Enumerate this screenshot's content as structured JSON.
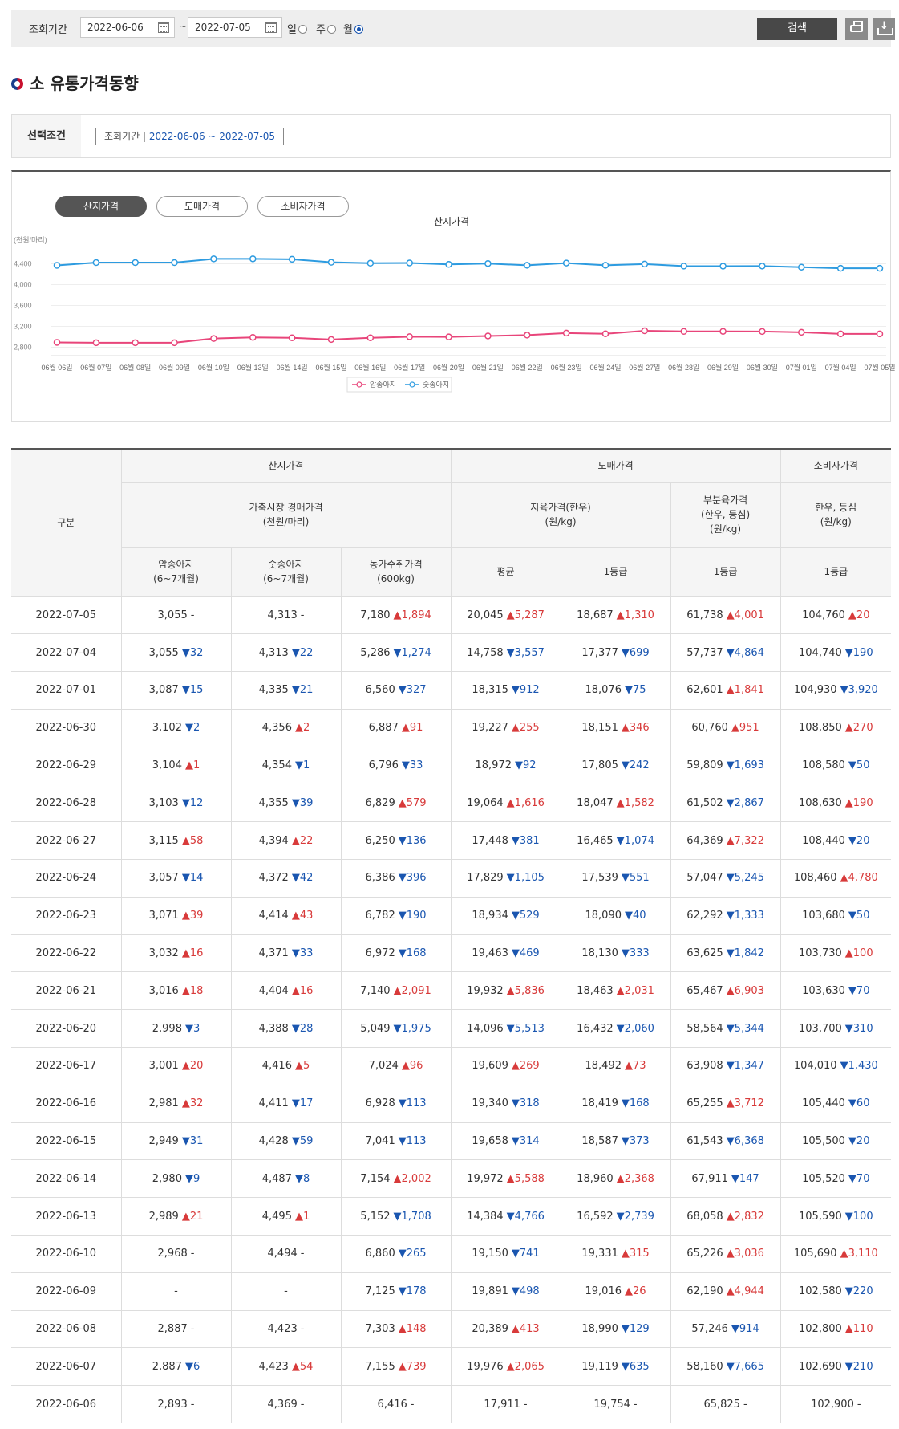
{
  "search": {
    "label": "조회기간",
    "start_date": "2022-06-06",
    "end_date": "2022-07-05",
    "tilde": "~",
    "periods": [
      "일",
      "주",
      "월"
    ],
    "selected_period": "월",
    "search_button": "검색",
    "print_icon": "print-icon",
    "download_icon": "download-icon"
  },
  "page": {
    "title": "소 유통가격동향"
  },
  "condition": {
    "label": "선택조건",
    "tag_label": "조회기간 |",
    "tag_value": "2022-06-06 ~ 2022-07-05"
  },
  "chart_tabs": [
    "산지가격",
    "도매가격",
    "소비자가격"
  ],
  "active_tab": "산지가격",
  "colors": {
    "series1": "#e8457a",
    "series2": "#2d9be0",
    "up": "#d83a3a",
    "down": "#1a56b0"
  },
  "chart_data": {
    "type": "line",
    "title": "산지가격",
    "ylabel": "(천원/마리)",
    "ylim": [
      2700,
      4700
    ],
    "yticks": [
      "4,400",
      "4,000",
      "3,600",
      "3,200",
      "2,800"
    ],
    "ytick_values": [
      4400,
      4000,
      3600,
      3200,
      2800
    ],
    "grid": true,
    "legend": "bottom",
    "x": [
      "06월 06일",
      "06월 07일",
      "06월 08일",
      "06월 09일",
      "06월 10일",
      "06월 13일",
      "06월 14일",
      "06월 15일",
      "06월 16일",
      "06월 17일",
      "06월 20일",
      "06월 21일",
      "06월 22일",
      "06월 23일",
      "06월 24일",
      "06월 27일",
      "06월 28일",
      "06월 29일",
      "06월 30일",
      "07월 01일",
      "07월 04일",
      "07월 05일"
    ],
    "series": [
      {
        "name": "암송아지",
        "values": [
          2893,
          2887,
          2887,
          2887,
          2968,
          2989,
          2980,
          2949,
          2981,
          3001,
          2998,
          3016,
          3032,
          3071,
          3057,
          3115,
          3103,
          3104,
          3102,
          3087,
          3055,
          3055
        ]
      },
      {
        "name": "숫송아지",
        "values": [
          4369,
          4423,
          4423,
          4423,
          4494,
          4495,
          4487,
          4428,
          4411,
          4416,
          4388,
          4404,
          4371,
          4414,
          4372,
          4394,
          4355,
          4354,
          4356,
          4335,
          4313,
          4313
        ]
      }
    ]
  },
  "table": {
    "h_category": "구분",
    "h_group1": "산지가격",
    "h_group2": "도매가격",
    "h_group3": "소비자가격",
    "h_sub1": "가축시장 경매가격\n(천원/마리)",
    "h_sub2": "지육가격(한우)\n(원/kg)",
    "h_sub3": "부분육가격\n(한우, 등심)\n(원/kg)",
    "h_sub4": "한우, 등심\n(원/kg)",
    "h_cols": [
      "암송아지\n(6~7개월)",
      "숫송아지\n(6~7개월)",
      "농가수취가격\n(600kg)",
      "평균",
      "1등급",
      "1등급",
      "1등급"
    ],
    "rows": [
      [
        "2022-07-05",
        [
          "3,055",
          "-"
        ],
        [
          "4,313",
          "-"
        ],
        [
          "7,180",
          "▲1,894"
        ],
        [
          "20,045",
          "▲5,287"
        ],
        [
          "18,687",
          "▲1,310"
        ],
        [
          "61,738",
          "▲4,001"
        ],
        [
          "104,760",
          "▲20"
        ]
      ],
      [
        "2022-07-04",
        [
          "3,055",
          "▼32"
        ],
        [
          "4,313",
          "▼22"
        ],
        [
          "5,286",
          "▼1,274"
        ],
        [
          "14,758",
          "▼3,557"
        ],
        [
          "17,377",
          "▼699"
        ],
        [
          "57,737",
          "▼4,864"
        ],
        [
          "104,740",
          "▼190"
        ]
      ],
      [
        "2022-07-01",
        [
          "3,087",
          "▼15"
        ],
        [
          "4,335",
          "▼21"
        ],
        [
          "6,560",
          "▼327"
        ],
        [
          "18,315",
          "▼912"
        ],
        [
          "18,076",
          "▼75"
        ],
        [
          "62,601",
          "▲1,841"
        ],
        [
          "104,930",
          "▼3,920"
        ]
      ],
      [
        "2022-06-30",
        [
          "3,102",
          "▼2"
        ],
        [
          "4,356",
          "▲2"
        ],
        [
          "6,887",
          "▲91"
        ],
        [
          "19,227",
          "▲255"
        ],
        [
          "18,151",
          "▲346"
        ],
        [
          "60,760",
          "▲951"
        ],
        [
          "108,850",
          "▲270"
        ]
      ],
      [
        "2022-06-29",
        [
          "3,104",
          "▲1"
        ],
        [
          "4,354",
          "▼1"
        ],
        [
          "6,796",
          "▼33"
        ],
        [
          "18,972",
          "▼92"
        ],
        [
          "17,805",
          "▼242"
        ],
        [
          "59,809",
          "▼1,693"
        ],
        [
          "108,580",
          "▼50"
        ]
      ],
      [
        "2022-06-28",
        [
          "3,103",
          "▼12"
        ],
        [
          "4,355",
          "▼39"
        ],
        [
          "6,829",
          "▲579"
        ],
        [
          "19,064",
          "▲1,616"
        ],
        [
          "18,047",
          "▲1,582"
        ],
        [
          "61,502",
          "▼2,867"
        ],
        [
          "108,630",
          "▲190"
        ]
      ],
      [
        "2022-06-27",
        [
          "3,115",
          "▲58"
        ],
        [
          "4,394",
          "▲22"
        ],
        [
          "6,250",
          "▼136"
        ],
        [
          "17,448",
          "▼381"
        ],
        [
          "16,465",
          "▼1,074"
        ],
        [
          "64,369",
          "▲7,322"
        ],
        [
          "108,440",
          "▼20"
        ]
      ],
      [
        "2022-06-24",
        [
          "3,057",
          "▼14"
        ],
        [
          "4,372",
          "▼42"
        ],
        [
          "6,386",
          "▼396"
        ],
        [
          "17,829",
          "▼1,105"
        ],
        [
          "17,539",
          "▼551"
        ],
        [
          "57,047",
          "▼5,245"
        ],
        [
          "108,460",
          "▲4,780"
        ]
      ],
      [
        "2022-06-23",
        [
          "3,071",
          "▲39"
        ],
        [
          "4,414",
          "▲43"
        ],
        [
          "6,782",
          "▼190"
        ],
        [
          "18,934",
          "▼529"
        ],
        [
          "18,090",
          "▼40"
        ],
        [
          "62,292",
          "▼1,333"
        ],
        [
          "103,680",
          "▼50"
        ]
      ],
      [
        "2022-06-22",
        [
          "3,032",
          "▲16"
        ],
        [
          "4,371",
          "▼33"
        ],
        [
          "6,972",
          "▼168"
        ],
        [
          "19,463",
          "▼469"
        ],
        [
          "18,130",
          "▼333"
        ],
        [
          "63,625",
          "▼1,842"
        ],
        [
          "103,730",
          "▲100"
        ]
      ],
      [
        "2022-06-21",
        [
          "3,016",
          "▲18"
        ],
        [
          "4,404",
          "▲16"
        ],
        [
          "7,140",
          "▲2,091"
        ],
        [
          "19,932",
          "▲5,836"
        ],
        [
          "18,463",
          "▲2,031"
        ],
        [
          "65,467",
          "▲6,903"
        ],
        [
          "103,630",
          "▼70"
        ]
      ],
      [
        "2022-06-20",
        [
          "2,998",
          "▼3"
        ],
        [
          "4,388",
          "▼28"
        ],
        [
          "5,049",
          "▼1,975"
        ],
        [
          "14,096",
          "▼5,513"
        ],
        [
          "16,432",
          "▼2,060"
        ],
        [
          "58,564",
          "▼5,344"
        ],
        [
          "103,700",
          "▼310"
        ]
      ],
      [
        "2022-06-17",
        [
          "3,001",
          "▲20"
        ],
        [
          "4,416",
          "▲5"
        ],
        [
          "7,024",
          "▲96"
        ],
        [
          "19,609",
          "▲269"
        ],
        [
          "18,492",
          "▲73"
        ],
        [
          "63,908",
          "▼1,347"
        ],
        [
          "104,010",
          "▼1,430"
        ]
      ],
      [
        "2022-06-16",
        [
          "2,981",
          "▲32"
        ],
        [
          "4,411",
          "▼17"
        ],
        [
          "6,928",
          "▼113"
        ],
        [
          "19,340",
          "▼318"
        ],
        [
          "18,419",
          "▼168"
        ],
        [
          "65,255",
          "▲3,712"
        ],
        [
          "105,440",
          "▼60"
        ]
      ],
      [
        "2022-06-15",
        [
          "2,949",
          "▼31"
        ],
        [
          "4,428",
          "▼59"
        ],
        [
          "7,041",
          "▼113"
        ],
        [
          "19,658",
          "▼314"
        ],
        [
          "18,587",
          "▼373"
        ],
        [
          "61,543",
          "▼6,368"
        ],
        [
          "105,500",
          "▼20"
        ]
      ],
      [
        "2022-06-14",
        [
          "2,980",
          "▼9"
        ],
        [
          "4,487",
          "▼8"
        ],
        [
          "7,154",
          "▲2,002"
        ],
        [
          "19,972",
          "▲5,588"
        ],
        [
          "18,960",
          "▲2,368"
        ],
        [
          "67,911",
          "▼147"
        ],
        [
          "105,520",
          "▼70"
        ]
      ],
      [
        "2022-06-13",
        [
          "2,989",
          "▲21"
        ],
        [
          "4,495",
          "▲1"
        ],
        [
          "5,152",
          "▼1,708"
        ],
        [
          "14,384",
          "▼4,766"
        ],
        [
          "16,592",
          "▼2,739"
        ],
        [
          "68,058",
          "▲2,832"
        ],
        [
          "105,590",
          "▼100"
        ]
      ],
      [
        "2022-06-10",
        [
          "2,968",
          "-"
        ],
        [
          "4,494",
          "-"
        ],
        [
          "6,860",
          "▼265"
        ],
        [
          "19,150",
          "▼741"
        ],
        [
          "19,331",
          "▲315"
        ],
        [
          "65,226",
          "▲3,036"
        ],
        [
          "105,690",
          "▲3,110"
        ]
      ],
      [
        "2022-06-09",
        [
          "-",
          ""
        ],
        [
          "-",
          ""
        ],
        [
          "7,125",
          "▼178"
        ],
        [
          "19,891",
          "▼498"
        ],
        [
          "19,016",
          "▲26"
        ],
        [
          "62,190",
          "▲4,944"
        ],
        [
          "102,580",
          "▼220"
        ]
      ],
      [
        "2022-06-08",
        [
          "2,887",
          "-"
        ],
        [
          "4,423",
          "-"
        ],
        [
          "7,303",
          "▲148"
        ],
        [
          "20,389",
          "▲413"
        ],
        [
          "18,990",
          "▼129"
        ],
        [
          "57,246",
          "▼914"
        ],
        [
          "102,800",
          "▲110"
        ]
      ],
      [
        "2022-06-07",
        [
          "2,887",
          "▼6"
        ],
        [
          "4,423",
          "▲54"
        ],
        [
          "7,155",
          "▲739"
        ],
        [
          "19,976",
          "▲2,065"
        ],
        [
          "19,119",
          "▼635"
        ],
        [
          "58,160",
          "▼7,665"
        ],
        [
          "102,690",
          "▼210"
        ]
      ],
      [
        "2022-06-06",
        [
          "2,893",
          "-"
        ],
        [
          "4,369",
          "-"
        ],
        [
          "6,416",
          "-"
        ],
        [
          "17,911",
          "-"
        ],
        [
          "19,754",
          "-"
        ],
        [
          "65,825",
          "-"
        ],
        [
          "102,900",
          "-"
        ]
      ]
    ]
  }
}
